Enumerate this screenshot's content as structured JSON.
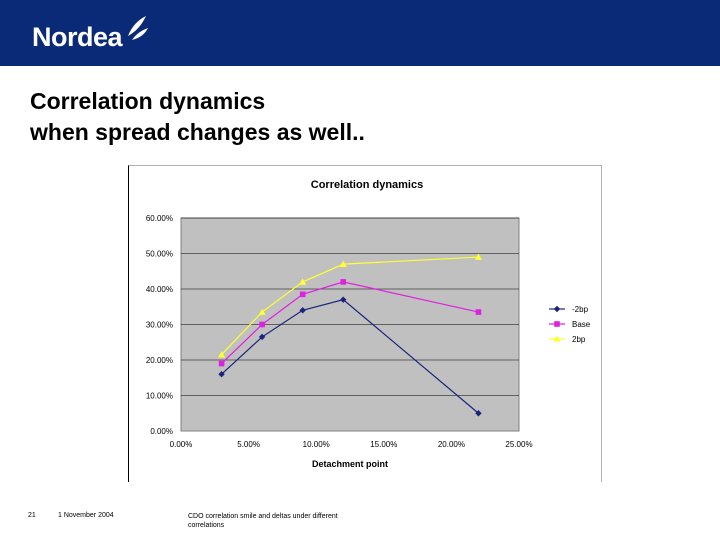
{
  "brand": {
    "name": "Nordea",
    "colors": {
      "header_bg": "#0a2a78",
      "logo_text": "#ffffff"
    }
  },
  "slide": {
    "title_line1": "Correlation dynamics",
    "title_line2": "when spread changes as well.."
  },
  "footer": {
    "page_number": "21",
    "date": "1 November 2004",
    "doc_line1": "CDO correlation smile and deltas under different",
    "doc_line2": "correlations"
  },
  "chart_data": {
    "type": "line",
    "title": "Correlation dynamics",
    "xlabel": "Detachment point",
    "ylabel": "",
    "xlim": [
      0,
      25
    ],
    "ylim": [
      0,
      60
    ],
    "x_ticks": [
      "0.00%",
      "5.00%",
      "10.00%",
      "15.00%",
      "20.00%",
      "25.00%"
    ],
    "y_ticks": [
      "0.00%",
      "10.00%",
      "20.00%",
      "30.00%",
      "40.00%",
      "50.00%",
      "60.00%"
    ],
    "x": [
      3,
      6,
      9,
      12,
      22
    ],
    "grid": true,
    "legend_position": "right",
    "plot_bg": "#c0c0c0",
    "series": [
      {
        "name": "-2bp",
        "values": [
          16,
          26.5,
          34,
          37,
          5
        ],
        "color": "#1a237e",
        "marker": "diamond"
      },
      {
        "name": "Base",
        "values": [
          19,
          30,
          38.5,
          42,
          33.5
        ],
        "color": "#e020e0",
        "marker": "square"
      },
      {
        "name": "2bp",
        "values": [
          21.5,
          33.5,
          42,
          47,
          49
        ],
        "color": "#ffff33",
        "marker": "triangle"
      }
    ]
  }
}
